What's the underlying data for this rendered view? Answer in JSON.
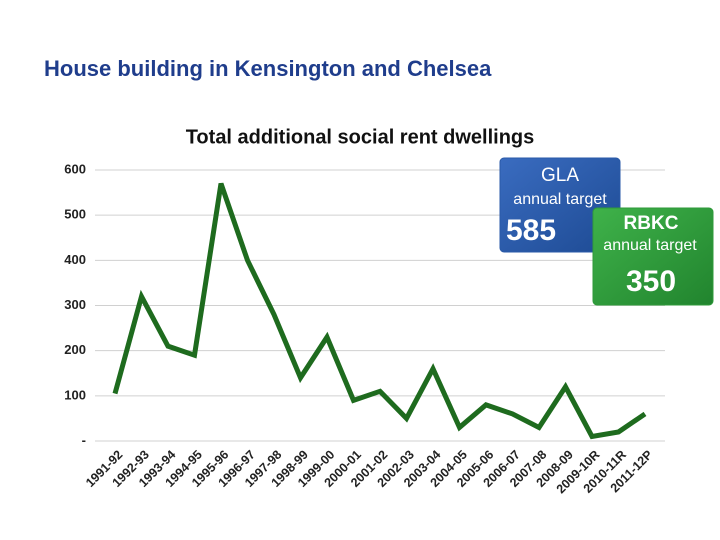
{
  "chart_data": {
    "type": "line",
    "title": "House building in Kensington and Chelsea",
    "subtitle": "Total additional social rent dwellings",
    "categories": [
      "1991-92",
      "1992-93",
      "1993-94",
      "1994-95",
      "1995-96",
      "1996-97",
      "1997-98",
      "1998-99",
      "1999-00",
      "2000-01",
      "2001-02",
      "2002-03",
      "2003-04",
      "2004-05",
      "2005-06",
      "2006-07",
      "2007-08",
      "2008-09",
      "2009-10R",
      "2010-11R",
      "2011-12P"
    ],
    "series": [
      {
        "name": "Total additional social rent dwellings",
        "color": "#1e6b1e",
        "values": [
          105,
          320,
          210,
          190,
          570,
          400,
          280,
          140,
          230,
          90,
          110,
          50,
          160,
          30,
          80,
          60,
          30,
          120,
          10,
          20,
          60
        ]
      }
    ],
    "ylim": [
      0,
      600
    ],
    "yticks": [
      {
        "value": 0,
        "label": "-"
      },
      100,
      200,
      300,
      400,
      500,
      600
    ],
    "grid": true,
    "annotations": [
      {
        "title": "GLA",
        "text": "annual target",
        "value": "585",
        "color": "#2a5aa8"
      },
      {
        "title": "RBKC",
        "text": "annual target",
        "value": "350",
        "color": "#2f9a3a"
      }
    ]
  }
}
